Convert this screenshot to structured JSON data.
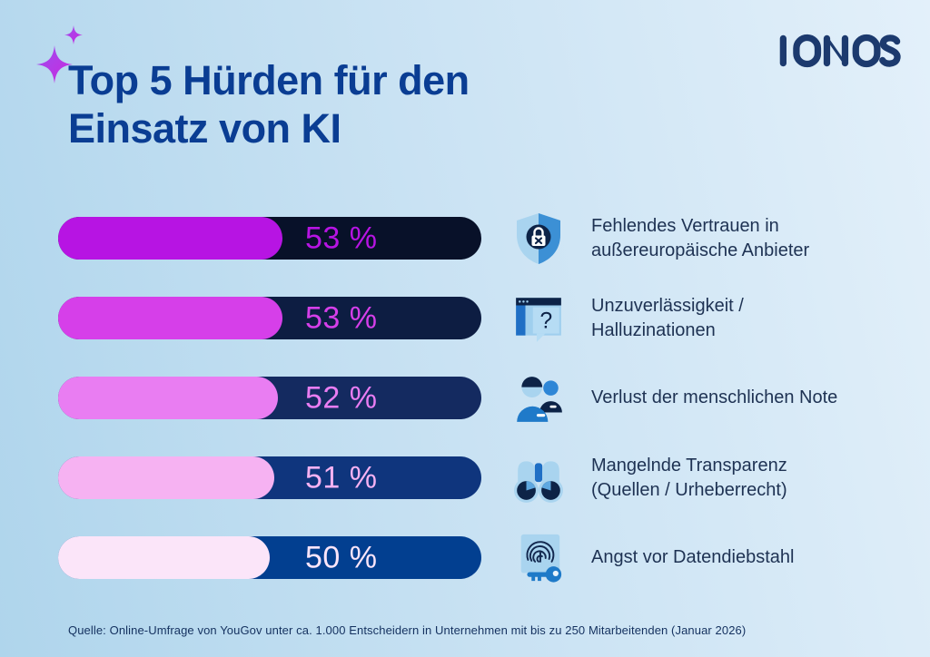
{
  "header": {
    "title_lines": [
      "Top 5 Hürden für den",
      "Einsatz von KI"
    ],
    "title_color": "#0a3d93",
    "logo_text": "IONOS",
    "logo_color": "#1c3a6e",
    "sparkle_colors": {
      "from": "#9b4ff0",
      "to": "#cb28dd"
    }
  },
  "chart_data": {
    "type": "bar",
    "orientation": "horizontal",
    "title": "Top 5 Hürden für den Einsatz von KI",
    "unit": "%",
    "xlim": [
      0,
      100
    ],
    "grid": false,
    "legend": "none",
    "categories": [
      "Fehlendes Vertrauen in außereuropäische Anbieter",
      "Unzuverlässigkeit / Halluzinationen",
      "Verlust der menschlichen Note",
      "Mangelnde Transparenz (Quellen / Urheberrecht)",
      "Angst vor Datendiebstahl"
    ],
    "values": [
      53,
      53,
      52,
      51,
      50
    ],
    "value_labels": [
      "53 %",
      "53 %",
      "52 %",
      "51 %",
      "50 %"
    ]
  },
  "rows": [
    {
      "value": 53,
      "value_label": "53 %",
      "fill_color": "#b714e3",
      "track_color": "#081129",
      "icon": "shield-lock-icon",
      "text_lines": [
        "Fehlendes Vertrauen in",
        "außereuropäische Anbieter"
      ]
    },
    {
      "value": 53,
      "value_label": "53 %",
      "fill_color": "#d63fe9",
      "track_color": "#0d1d42",
      "icon": "browser-question-icon",
      "text_lines": [
        "Unzuverlässigkeit /",
        "Halluzinationen"
      ]
    },
    {
      "value": 52,
      "value_label": "52 %",
      "fill_color": "#e97df2",
      "track_color": "#142a60",
      "icon": "people-icon",
      "text_lines": [
        "Verlust der menschlichen Note"
      ]
    },
    {
      "value": 51,
      "value_label": "51 %",
      "fill_color": "#f6b2f2",
      "track_color": "#0f357d",
      "icon": "binoculars-icon",
      "text_lines": [
        "Mangelnde Transparenz",
        "(Quellen / Urheberrecht)"
      ]
    },
    {
      "value": 50,
      "value_label": "50 %",
      "fill_color": "#fbe5f9",
      "track_color": "#023f90",
      "icon": "fingerprint-key-icon",
      "text_lines": [
        "Angst vor Datendiebstahl"
      ]
    }
  ],
  "footer": {
    "source": "Quelle: Online-Umfrage von YouGov unter ca. 1.000 Entscheidern in Unternehmen mit bis zu 250 Mitarbeitenden (Januar 2026)"
  }
}
